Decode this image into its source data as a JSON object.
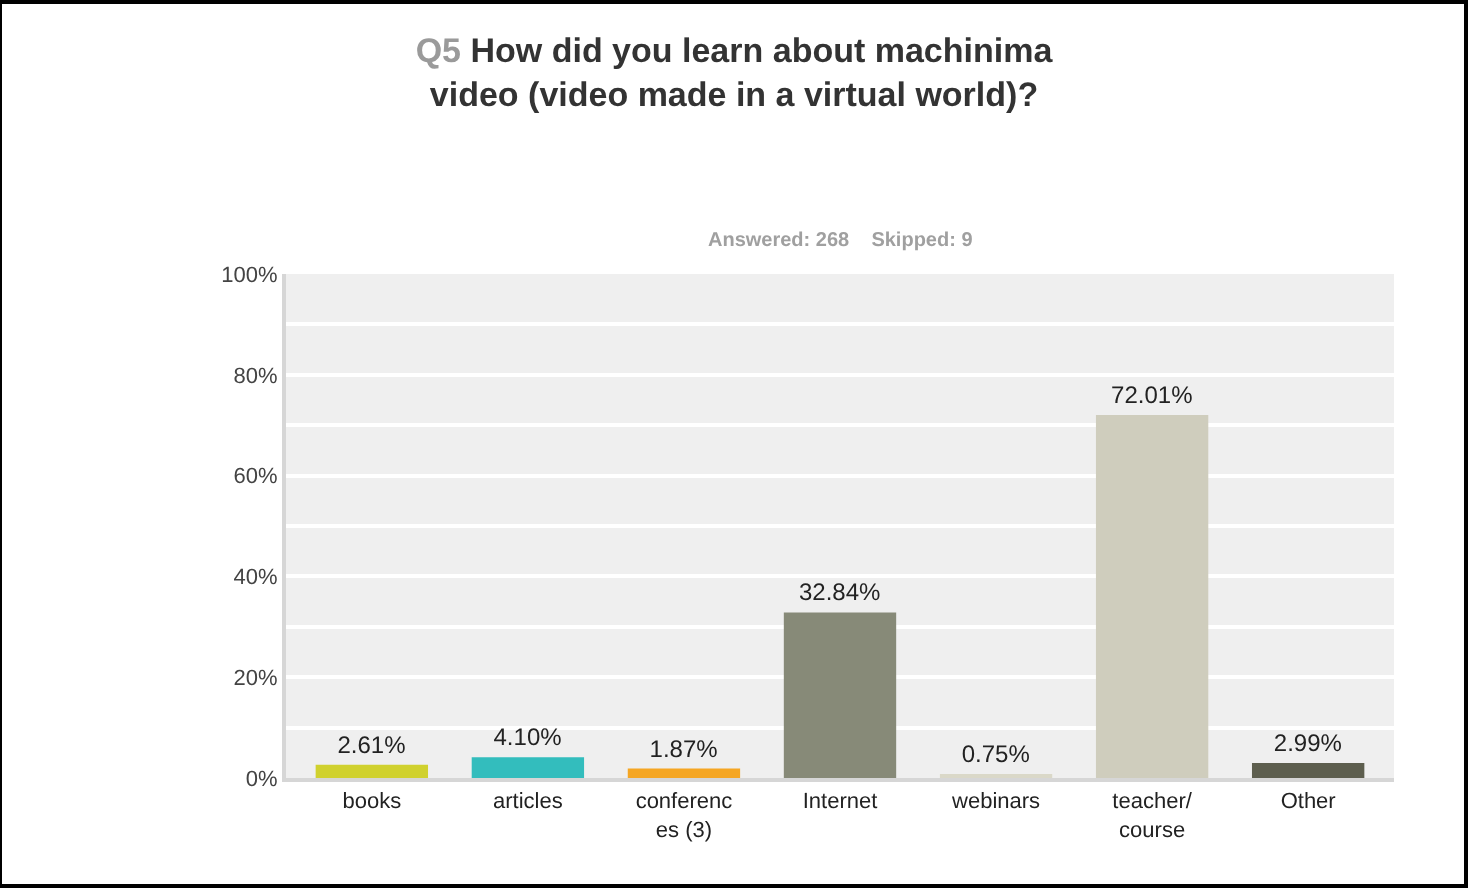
{
  "chart_data": {
    "type": "bar",
    "title": "Q5 How did you learn about machinima\nvideo (video made in a virtual world)?",
    "subtitle": "Answered: 268    Skipped: 9",
    "categories": [
      "books",
      "articles",
      "conferenc\nes (3)",
      "Internet",
      "webinars",
      "teacher/\ncourse",
      "Other"
    ],
    "values": [
      2.61,
      4.1,
      1.87,
      32.84,
      0.75,
      72.01,
      2.99
    ],
    "colors": [
      "#d0d12e",
      "#33bdbd",
      "#f5a623",
      "#878a78",
      "#dad8c8",
      "#cfcdbd",
      "#5d5e4e"
    ],
    "value_labels": [
      "2.61%",
      "4.10%",
      "1.87%",
      "32.84%",
      "0.75%",
      "72.01%",
      "2.99%"
    ],
    "ylim": [
      0,
      100
    ],
    "yticks": [
      {
        "value": 0,
        "label": "0%"
      },
      {
        "value": 20,
        "label": "20%"
      },
      {
        "value": 40,
        "label": "40%"
      },
      {
        "value": 60,
        "label": "60%"
      },
      {
        "value": 80,
        "label": "80%"
      },
      {
        "value": 100,
        "label": "100%"
      }
    ],
    "grid": "y",
    "legend": false
  }
}
